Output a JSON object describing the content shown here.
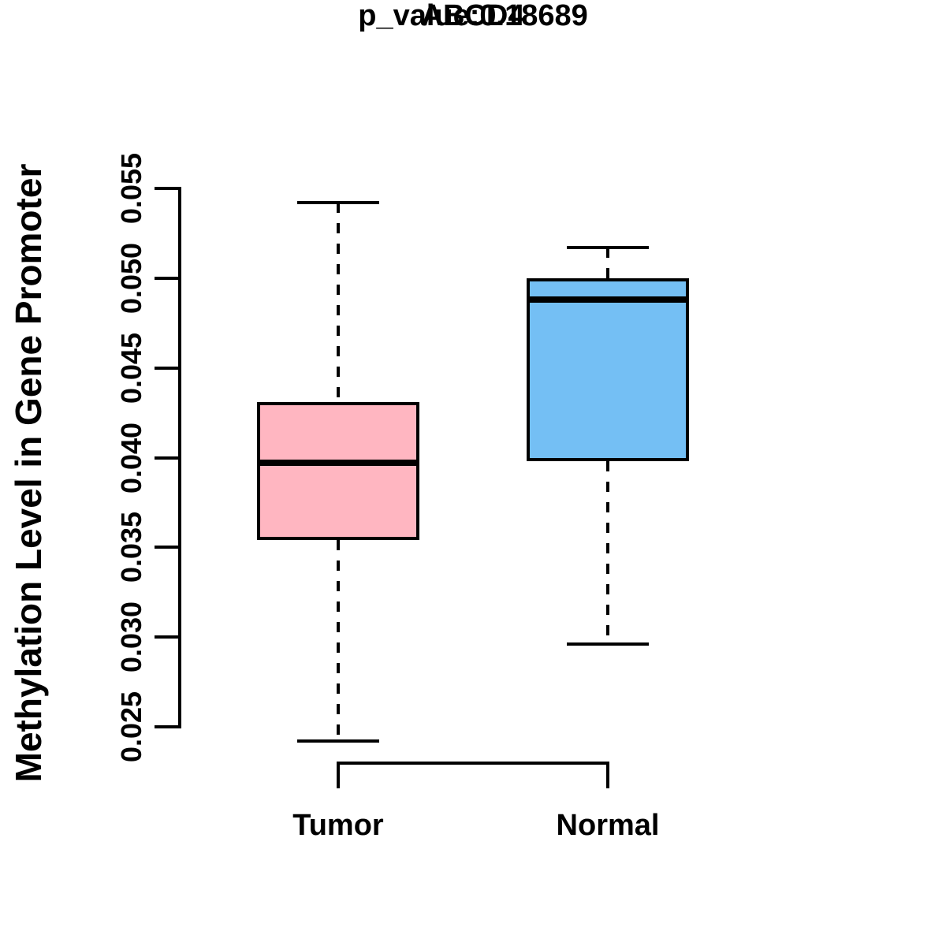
{
  "chart_data": {
    "type": "boxplot",
    "title": "ABCD4",
    "subtitle": "p_value:0.18689",
    "ylabel": "Methylation Level in Gene Promoter",
    "xlabel": "",
    "categories": [
      "Tumor",
      "Normal"
    ],
    "series": [
      {
        "name": "Tumor",
        "fill_color": "#FFB6C1",
        "whisker_low": 0.0242,
        "q1": 0.0354,
        "median": 0.0397,
        "q3": 0.0431,
        "whisker_high": 0.0542
      },
      {
        "name": "Normal",
        "fill_color": "#74BFF4",
        "whisker_low": 0.0296,
        "q1": 0.0398,
        "median": 0.0488,
        "q3": 0.05,
        "whisker_high": 0.0517
      }
    ],
    "ylim": [
      0.025,
      0.055
    ],
    "yticks": [
      0.025,
      0.03,
      0.035,
      0.04,
      0.045,
      0.05,
      0.055
    ],
    "ytick_labels": [
      "0.025",
      "0.030",
      "0.035",
      "0.040",
      "0.045",
      "0.050",
      "0.055"
    ],
    "grid": false,
    "legend": false,
    "line_color": "#000000",
    "background_color": "#FFFFFF"
  }
}
